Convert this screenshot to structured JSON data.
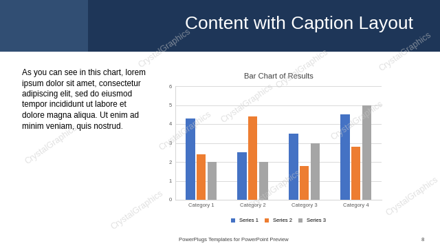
{
  "slide": {
    "title": "Content with Caption Layout",
    "caption": [
      "As you can see in this chart, lorem",
      "ipsum dolor sit amet, consectetur",
      "adipiscing elit, sed do eiusmod",
      "tempor incididunt ut labore et",
      "dolore magna aliqua. Ut enim ad",
      "minim veniam, quis nostrud."
    ],
    "footer": "PowerPlugs Templates for PowerPoint Preview",
    "page": "8",
    "watermark": "CrystalGraphics"
  },
  "chart_data": {
    "type": "bar",
    "title": "Bar Chart of Results",
    "categories": [
      "Category 1",
      "Category 2",
      "Category 3",
      "Category 4"
    ],
    "series": [
      {
        "name": "Series 1",
        "color": "#4472c4",
        "values": [
          4.3,
          2.5,
          3.5,
          4.5
        ]
      },
      {
        "name": "Series 2",
        "color": "#ed7d31",
        "values": [
          2.4,
          4.4,
          1.8,
          2.8
        ]
      },
      {
        "name": "Series 3",
        "color": "#a5a5a5",
        "values": [
          2,
          2,
          3,
          5
        ]
      }
    ],
    "ylim": [
      0,
      6
    ],
    "yticks": [
      0,
      1,
      2,
      3,
      4,
      5,
      6
    ],
    "grid": true,
    "legend": "bottom"
  }
}
